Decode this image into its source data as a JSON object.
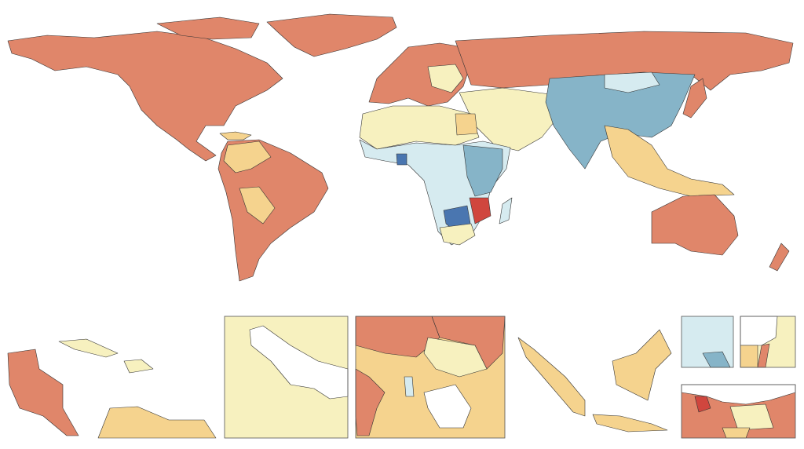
{
  "palette": {
    "high": "#e0866a",
    "highest": "#d0463e",
    "mid_high": "#f5d38e",
    "mid": "#f7f1bf",
    "mid_low": "#d6ebf0",
    "low": "#86b4c8",
    "lowest": "#4a76b0",
    "border": "#333333"
  }
}
